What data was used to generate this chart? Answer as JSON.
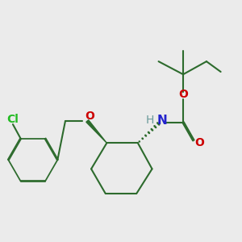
{
  "background_color": "#ebebeb",
  "bond_color": "#2d6b2d",
  "bond_width": 1.5,
  "atom_colors": {
    "Cl": "#22bb22",
    "O": "#cc0000",
    "N": "#2222cc",
    "H": "#6a9a9a",
    "C": "#2d6b2d"
  }
}
